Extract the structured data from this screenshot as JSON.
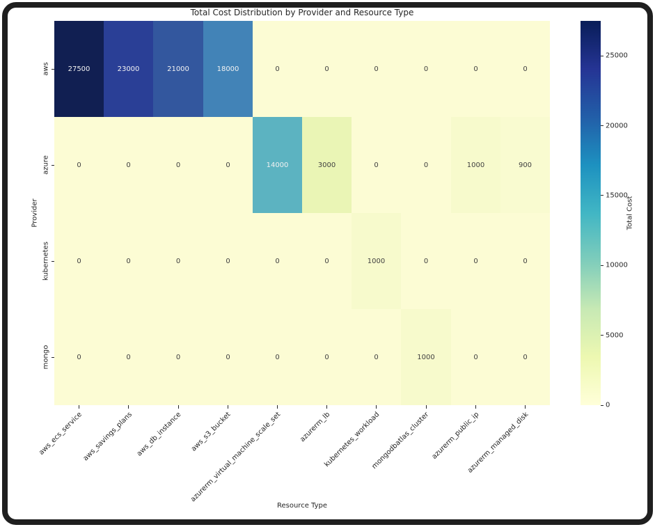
{
  "window": {
    "frame_color": "#1f1f1f",
    "background_color": "#ffffff"
  },
  "chart_data": {
    "type": "heatmap",
    "title": "Total Cost Distribution by Provider and Resource Type",
    "xlabel": "Resource Type",
    "ylabel": "Provider",
    "colorbar_label": "Total Cost",
    "categories": [
      "aws_ecs_service",
      "aws_savings_plans",
      "aws_db_instance",
      "aws_s3_bucket",
      "azurerm_virtual_machine_scale_set",
      "azurerm_lb",
      "kubernetes_workload",
      "mongodbatlas_cluster",
      "azurerm_public_ip",
      "azurerm_managed_disk"
    ],
    "rows": [
      "aws",
      "azure",
      "kubernetes",
      "mongo"
    ],
    "series": [
      {
        "name": "aws",
        "values": [
          27500,
          23000,
          21000,
          18000,
          0,
          0,
          0,
          0,
          0,
          0
        ]
      },
      {
        "name": "azure",
        "values": [
          0,
          0,
          0,
          0,
          14000,
          3000,
          0,
          0,
          1000,
          900
        ]
      },
      {
        "name": "kubernetes",
        "values": [
          0,
          0,
          0,
          0,
          0,
          0,
          1000,
          0,
          0,
          0
        ]
      },
      {
        "name": "mongo",
        "values": [
          0,
          0,
          0,
          0,
          0,
          0,
          0,
          1000,
          0,
          0
        ]
      }
    ],
    "vmin": 0,
    "vmax": 27500,
    "colorbar_ticks": [
      0,
      5000,
      10000,
      15000,
      20000,
      25000
    ],
    "colormap": "YlGnBu",
    "colormap_stops": [
      {
        "pos": 0.0,
        "color": "#ffffd9"
      },
      {
        "pos": 0.125,
        "color": "#edf8b1"
      },
      {
        "pos": 0.25,
        "color": "#c7e9b4"
      },
      {
        "pos": 0.375,
        "color": "#7fcdbb"
      },
      {
        "pos": 0.5,
        "color": "#41b6c4"
      },
      {
        "pos": 0.625,
        "color": "#1d91c0"
      },
      {
        "pos": 0.75,
        "color": "#225ea8"
      },
      {
        "pos": 0.875,
        "color": "#253494"
      },
      {
        "pos": 1.0,
        "color": "#081d58"
      }
    ],
    "cell_colors": {
      "0": "#fcfcd4",
      "900": "#f9fbd0",
      "1000": "#f7facc",
      "3000": "#eaf5b5",
      "14000": "#5cb3c1",
      "18000": "#4283b7",
      "21000": "#33579e",
      "23000": "#2a3f96",
      "27500": "#111f52"
    },
    "light_text_values": [
      14000,
      18000,
      21000,
      23000,
      27500
    ],
    "annot_dark_color": "#404040",
    "annot_light_color": "#f2f2f2",
    "legend_position": "right-colorbar",
    "grid": false
  }
}
